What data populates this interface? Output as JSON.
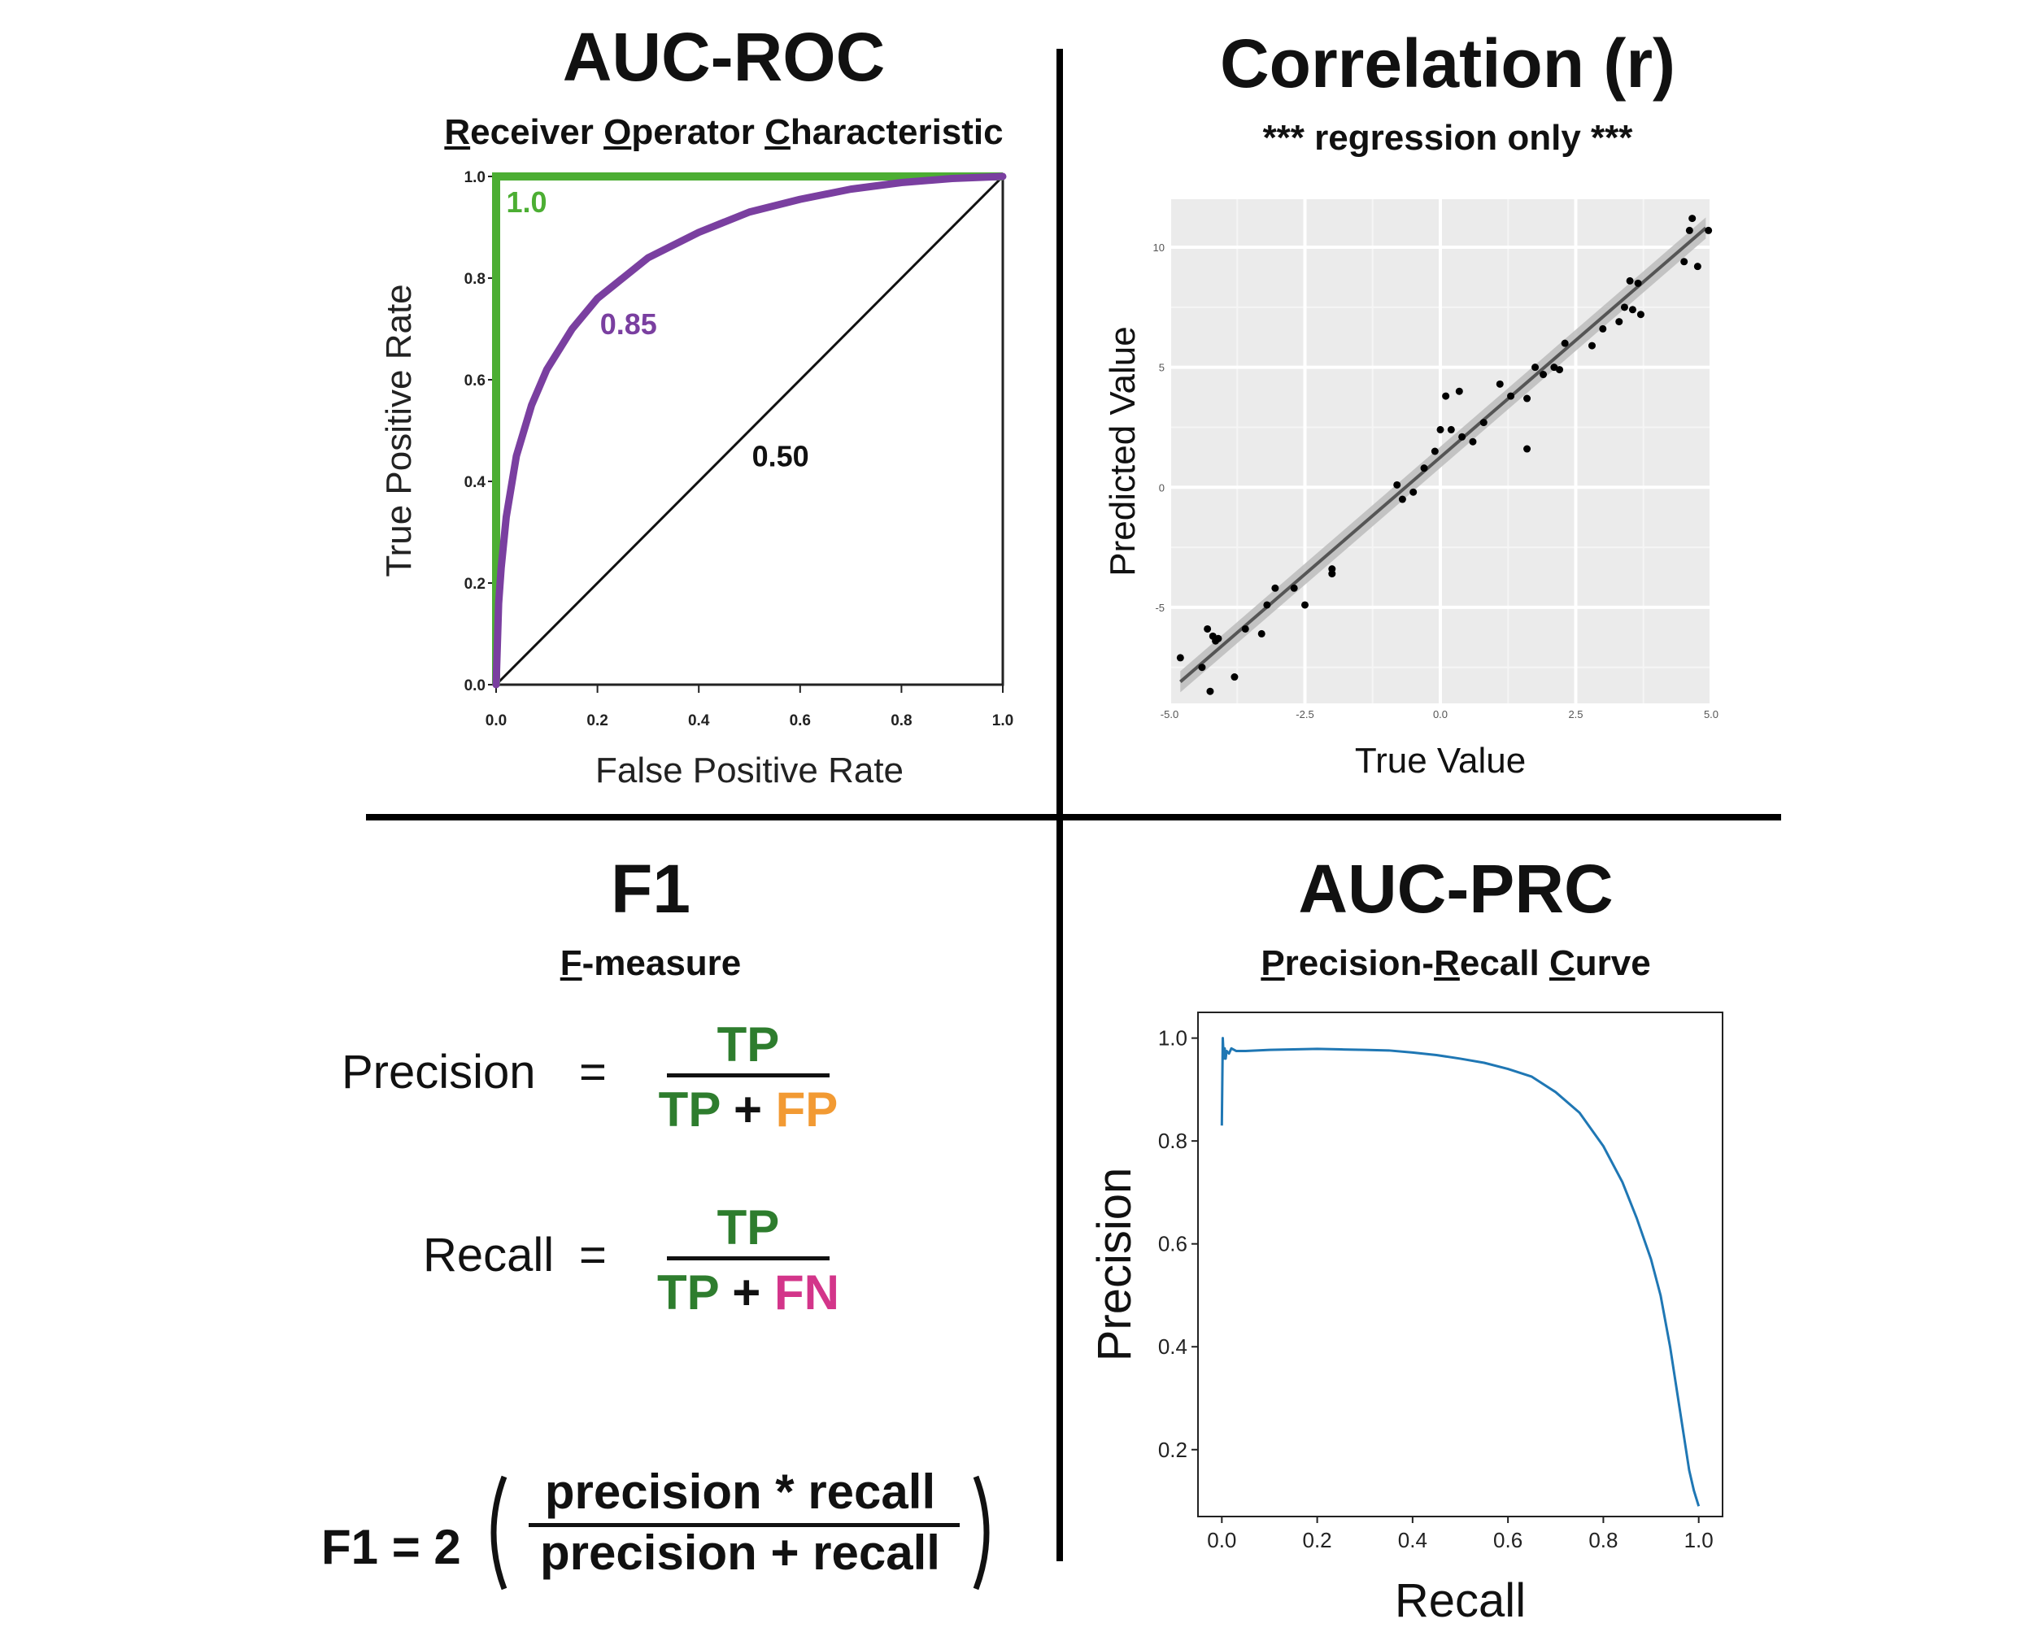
{
  "colors": {
    "roc_perfect": "#4cae33",
    "roc_good": "#7a3fa0",
    "tp": "#2e7d2e",
    "fp": "#f29a33",
    "fn": "#d3358a",
    "prc_line": "#1f77b4",
    "ggplot_bg": "#ebebeb"
  },
  "auc_roc": {
    "title": "AUC-ROC",
    "subtitle_parts": [
      "R",
      "eceiver ",
      "O",
      "perator ",
      "C",
      "haracteristic"
    ]
  },
  "correlation": {
    "title": "Correlation (r)",
    "subtitle": "*** regression only ***"
  },
  "f1": {
    "title": "F1",
    "subtitle_parts": [
      "F",
      "-measure"
    ],
    "precision_label": "Precision",
    "recall_label": "Recall",
    "equals": "=",
    "tp": "TP",
    "plus": "+",
    "fp": "FP",
    "fn": "FN",
    "f1_prefix": "F1 = 2",
    "f1_num": "precision * recall",
    "f1_den": "precision + recall"
  },
  "auc_prc": {
    "title": "AUC-PRC",
    "subtitle_parts": [
      "P",
      "recision-",
      "R",
      "ecall ",
      "C",
      "urve"
    ]
  },
  "chart_data": [
    {
      "type": "line",
      "name": "roc",
      "xlabel": "False Positive Rate",
      "ylabel": "True Positive Rate",
      "xlim": [
        0,
        1
      ],
      "ylim": [
        0,
        1
      ],
      "xticks": [
        "0.0",
        "0.2",
        "0.4",
        "0.6",
        "0.8",
        "1.0"
      ],
      "yticks": [
        "0.0",
        "0.2",
        "0.4",
        "0.6",
        "0.8",
        "1.0"
      ],
      "series": [
        {
          "label": "1.0",
          "x": [
            0,
            0,
            1
          ],
          "y": [
            0,
            1,
            1
          ]
        },
        {
          "label": "0.85",
          "x": [
            0,
            0.005,
            0.01,
            0.02,
            0.04,
            0.07,
            0.1,
            0.15,
            0.2,
            0.3,
            0.4,
            0.5,
            0.6,
            0.7,
            0.8,
            0.9,
            1.0
          ],
          "y": [
            0,
            0.16,
            0.23,
            0.33,
            0.45,
            0.55,
            0.62,
            0.7,
            0.76,
            0.84,
            0.89,
            0.93,
            0.955,
            0.975,
            0.988,
            0.996,
            1.0
          ]
        },
        {
          "label": "0.50",
          "x": [
            0,
            1
          ],
          "y": [
            0,
            1
          ]
        }
      ]
    },
    {
      "type": "scatter",
      "name": "correlation",
      "xlabel": "True Value",
      "ylabel": "Predicted Value",
      "xlim": [
        -5,
        5
      ],
      "ylim": [
        -9,
        12
      ],
      "xticks": [
        "-5.0",
        "-2.5",
        "0.0",
        "2.5",
        "5.0"
      ],
      "yticks": [
        "-5",
        "0",
        "5",
        "10"
      ],
      "grid": true,
      "fit": {
        "x": [
          -4.8,
          4.9
        ],
        "y": [
          -8.1,
          10.8
        ]
      },
      "x": [
        -4.8,
        -4.4,
        -4.3,
        -4.25,
        -4.2,
        -4.15,
        -4.1,
        -3.8,
        -3.6,
        -3.3,
        -3.2,
        -3.05,
        -2.7,
        -2.5,
        -2.0,
        -2.0,
        -0.8,
        -0.7,
        -0.5,
        -0.3,
        -0.1,
        0.0,
        0.1,
        0.2,
        0.35,
        0.4,
        0.6,
        0.8,
        1.1,
        1.3,
        1.6,
        1.6,
        1.75,
        1.9,
        2.1,
        2.2,
        2.3,
        2.8,
        3.0,
        3.3,
        3.4,
        3.5,
        3.55,
        3.65,
        3.7,
        4.5,
        4.6,
        4.65,
        4.75,
        4.95
      ],
      "y": [
        -7.1,
        -7.5,
        -5.9,
        -8.5,
        -6.2,
        -6.4,
        -6.3,
        -7.9,
        -5.9,
        -6.1,
        -4.9,
        -4.2,
        -4.2,
        -4.9,
        -3.4,
        -3.6,
        0.1,
        -0.5,
        -0.2,
        0.8,
        1.5,
        2.4,
        3.8,
        2.4,
        4.0,
        2.1,
        1.9,
        2.7,
        4.3,
        3.8,
        1.6,
        3.7,
        5.0,
        4.7,
        5.0,
        4.9,
        6.0,
        5.9,
        6.6,
        6.9,
        7.5,
        8.6,
        7.4,
        8.5,
        7.2,
        9.4,
        10.7,
        11.2,
        9.2,
        10.7
      ]
    },
    {
      "type": "line",
      "name": "prc",
      "xlabel": "Recall",
      "ylabel": "Precision",
      "xlim": [
        -0.05,
        1.05
      ],
      "ylim": [
        0.07,
        1.05
      ],
      "xticks": [
        "0.0",
        "0.2",
        "0.4",
        "0.6",
        "0.8",
        "1.0"
      ],
      "yticks": [
        "0.2",
        "0.4",
        "0.6",
        "0.8",
        "1.0"
      ],
      "x": [
        0.0,
        0.002,
        0.004,
        0.006,
        0.008,
        0.01,
        0.015,
        0.02,
        0.03,
        0.05,
        0.1,
        0.15,
        0.2,
        0.25,
        0.3,
        0.35,
        0.4,
        0.45,
        0.5,
        0.55,
        0.6,
        0.65,
        0.7,
        0.75,
        0.8,
        0.84,
        0.87,
        0.9,
        0.92,
        0.94,
        0.96,
        0.98,
        0.99,
        1.0
      ],
      "y": [
        0.83,
        1.0,
        0.96,
        0.98,
        0.96,
        0.975,
        0.97,
        0.98,
        0.975,
        0.975,
        0.977,
        0.978,
        0.979,
        0.978,
        0.977,
        0.976,
        0.972,
        0.967,
        0.96,
        0.952,
        0.94,
        0.925,
        0.895,
        0.855,
        0.79,
        0.72,
        0.65,
        0.57,
        0.5,
        0.4,
        0.28,
        0.16,
        0.12,
        0.09
      ]
    }
  ]
}
